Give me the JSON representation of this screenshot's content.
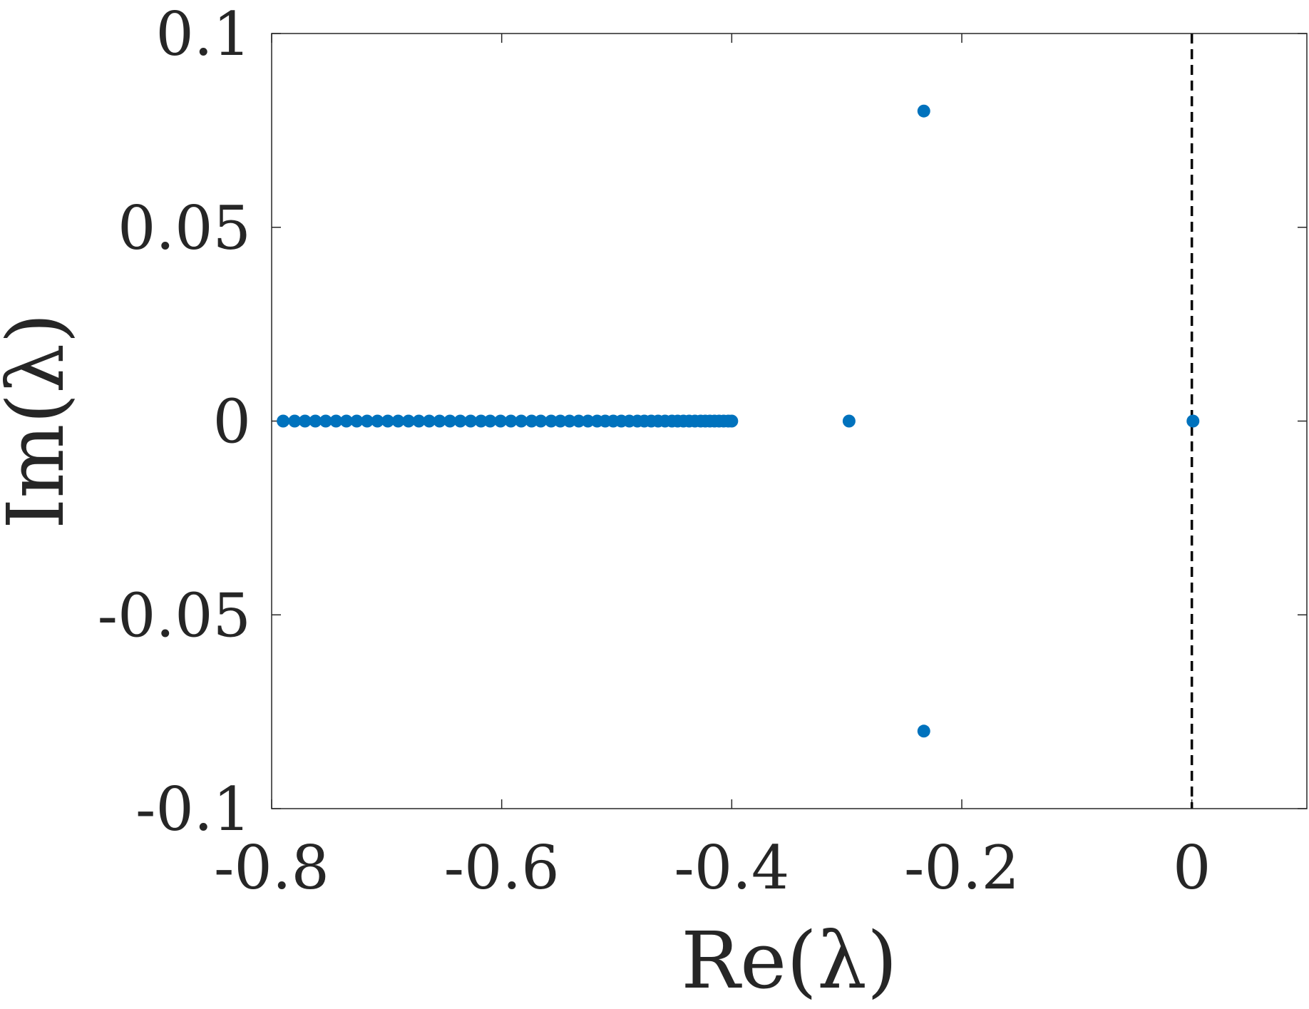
{
  "chart_data": {
    "type": "scatter",
    "title": "",
    "xlabel": "Re(λ)",
    "ylabel": "Im(λ)",
    "xlim": [
      -0.8,
      0.1
    ],
    "ylim": [
      -0.1,
      0.1
    ],
    "x_ticks": [
      -0.8,
      -0.6,
      -0.4,
      -0.2,
      0
    ],
    "x_tick_labels": [
      "-0.8",
      "-0.6",
      "-0.4",
      "-0.2",
      "0"
    ],
    "y_ticks": [
      -0.1,
      -0.05,
      0,
      0.05,
      0.1
    ],
    "y_tick_labels": [
      "-0.1",
      "-0.05",
      "0",
      "0.05",
      "0.1"
    ],
    "grid": false,
    "marker_color": "#0072BD",
    "reference_line": {
      "x": 0,
      "style": "dashed",
      "color": "#000000"
    },
    "points": [
      {
        "x": -0.79,
        "y": 0
      },
      {
        "x": -0.78,
        "y": 0
      },
      {
        "x": -0.771,
        "y": 0
      },
      {
        "x": -0.762,
        "y": 0
      },
      {
        "x": -0.753,
        "y": 0
      },
      {
        "x": -0.744,
        "y": 0
      },
      {
        "x": -0.735,
        "y": 0
      },
      {
        "x": -0.726,
        "y": 0
      },
      {
        "x": -0.717,
        "y": 0
      },
      {
        "x": -0.708,
        "y": 0
      },
      {
        "x": -0.699,
        "y": 0
      },
      {
        "x": -0.69,
        "y": 0
      },
      {
        "x": -0.681,
        "y": 0
      },
      {
        "x": -0.672,
        "y": 0
      },
      {
        "x": -0.663,
        "y": 0
      },
      {
        "x": -0.654,
        "y": 0
      },
      {
        "x": -0.645,
        "y": 0
      },
      {
        "x": -0.636,
        "y": 0
      },
      {
        "x": -0.627,
        "y": 0
      },
      {
        "x": -0.618,
        "y": 0
      },
      {
        "x": -0.61,
        "y": 0
      },
      {
        "x": -0.601,
        "y": 0
      },
      {
        "x": -0.592,
        "y": 0
      },
      {
        "x": -0.583,
        "y": 0
      },
      {
        "x": -0.574,
        "y": 0
      },
      {
        "x": -0.566,
        "y": 0
      },
      {
        "x": -0.557,
        "y": 0
      },
      {
        "x": -0.549,
        "y": 0
      },
      {
        "x": -0.541,
        "y": 0
      },
      {
        "x": -0.533,
        "y": 0
      },
      {
        "x": -0.525,
        "y": 0
      },
      {
        "x": -0.517,
        "y": 0
      },
      {
        "x": -0.51,
        "y": 0
      },
      {
        "x": -0.503,
        "y": 0
      },
      {
        "x": -0.496,
        "y": 0
      },
      {
        "x": -0.489,
        "y": 0
      },
      {
        "x": -0.482,
        "y": 0
      },
      {
        "x": -0.476,
        "y": 0
      },
      {
        "x": -0.47,
        "y": 0
      },
      {
        "x": -0.464,
        "y": 0
      },
      {
        "x": -0.458,
        "y": 0
      },
      {
        "x": -0.452,
        "y": 0
      },
      {
        "x": -0.447,
        "y": 0
      },
      {
        "x": -0.442,
        "y": 0
      },
      {
        "x": -0.437,
        "y": 0
      },
      {
        "x": -0.432,
        "y": 0
      },
      {
        "x": -0.427,
        "y": 0
      },
      {
        "x": -0.423,
        "y": 0
      },
      {
        "x": -0.419,
        "y": 0
      },
      {
        "x": -0.415,
        "y": 0
      },
      {
        "x": -0.411,
        "y": 0
      },
      {
        "x": -0.407,
        "y": 0
      },
      {
        "x": -0.403,
        "y": 0
      },
      {
        "x": -0.4,
        "y": 0
      },
      {
        "x": -0.298,
        "y": 0
      },
      {
        "x": -0.233,
        "y": 0.08
      },
      {
        "x": -0.233,
        "y": -0.08
      },
      {
        "x": 0.001,
        "y": 0
      }
    ]
  }
}
